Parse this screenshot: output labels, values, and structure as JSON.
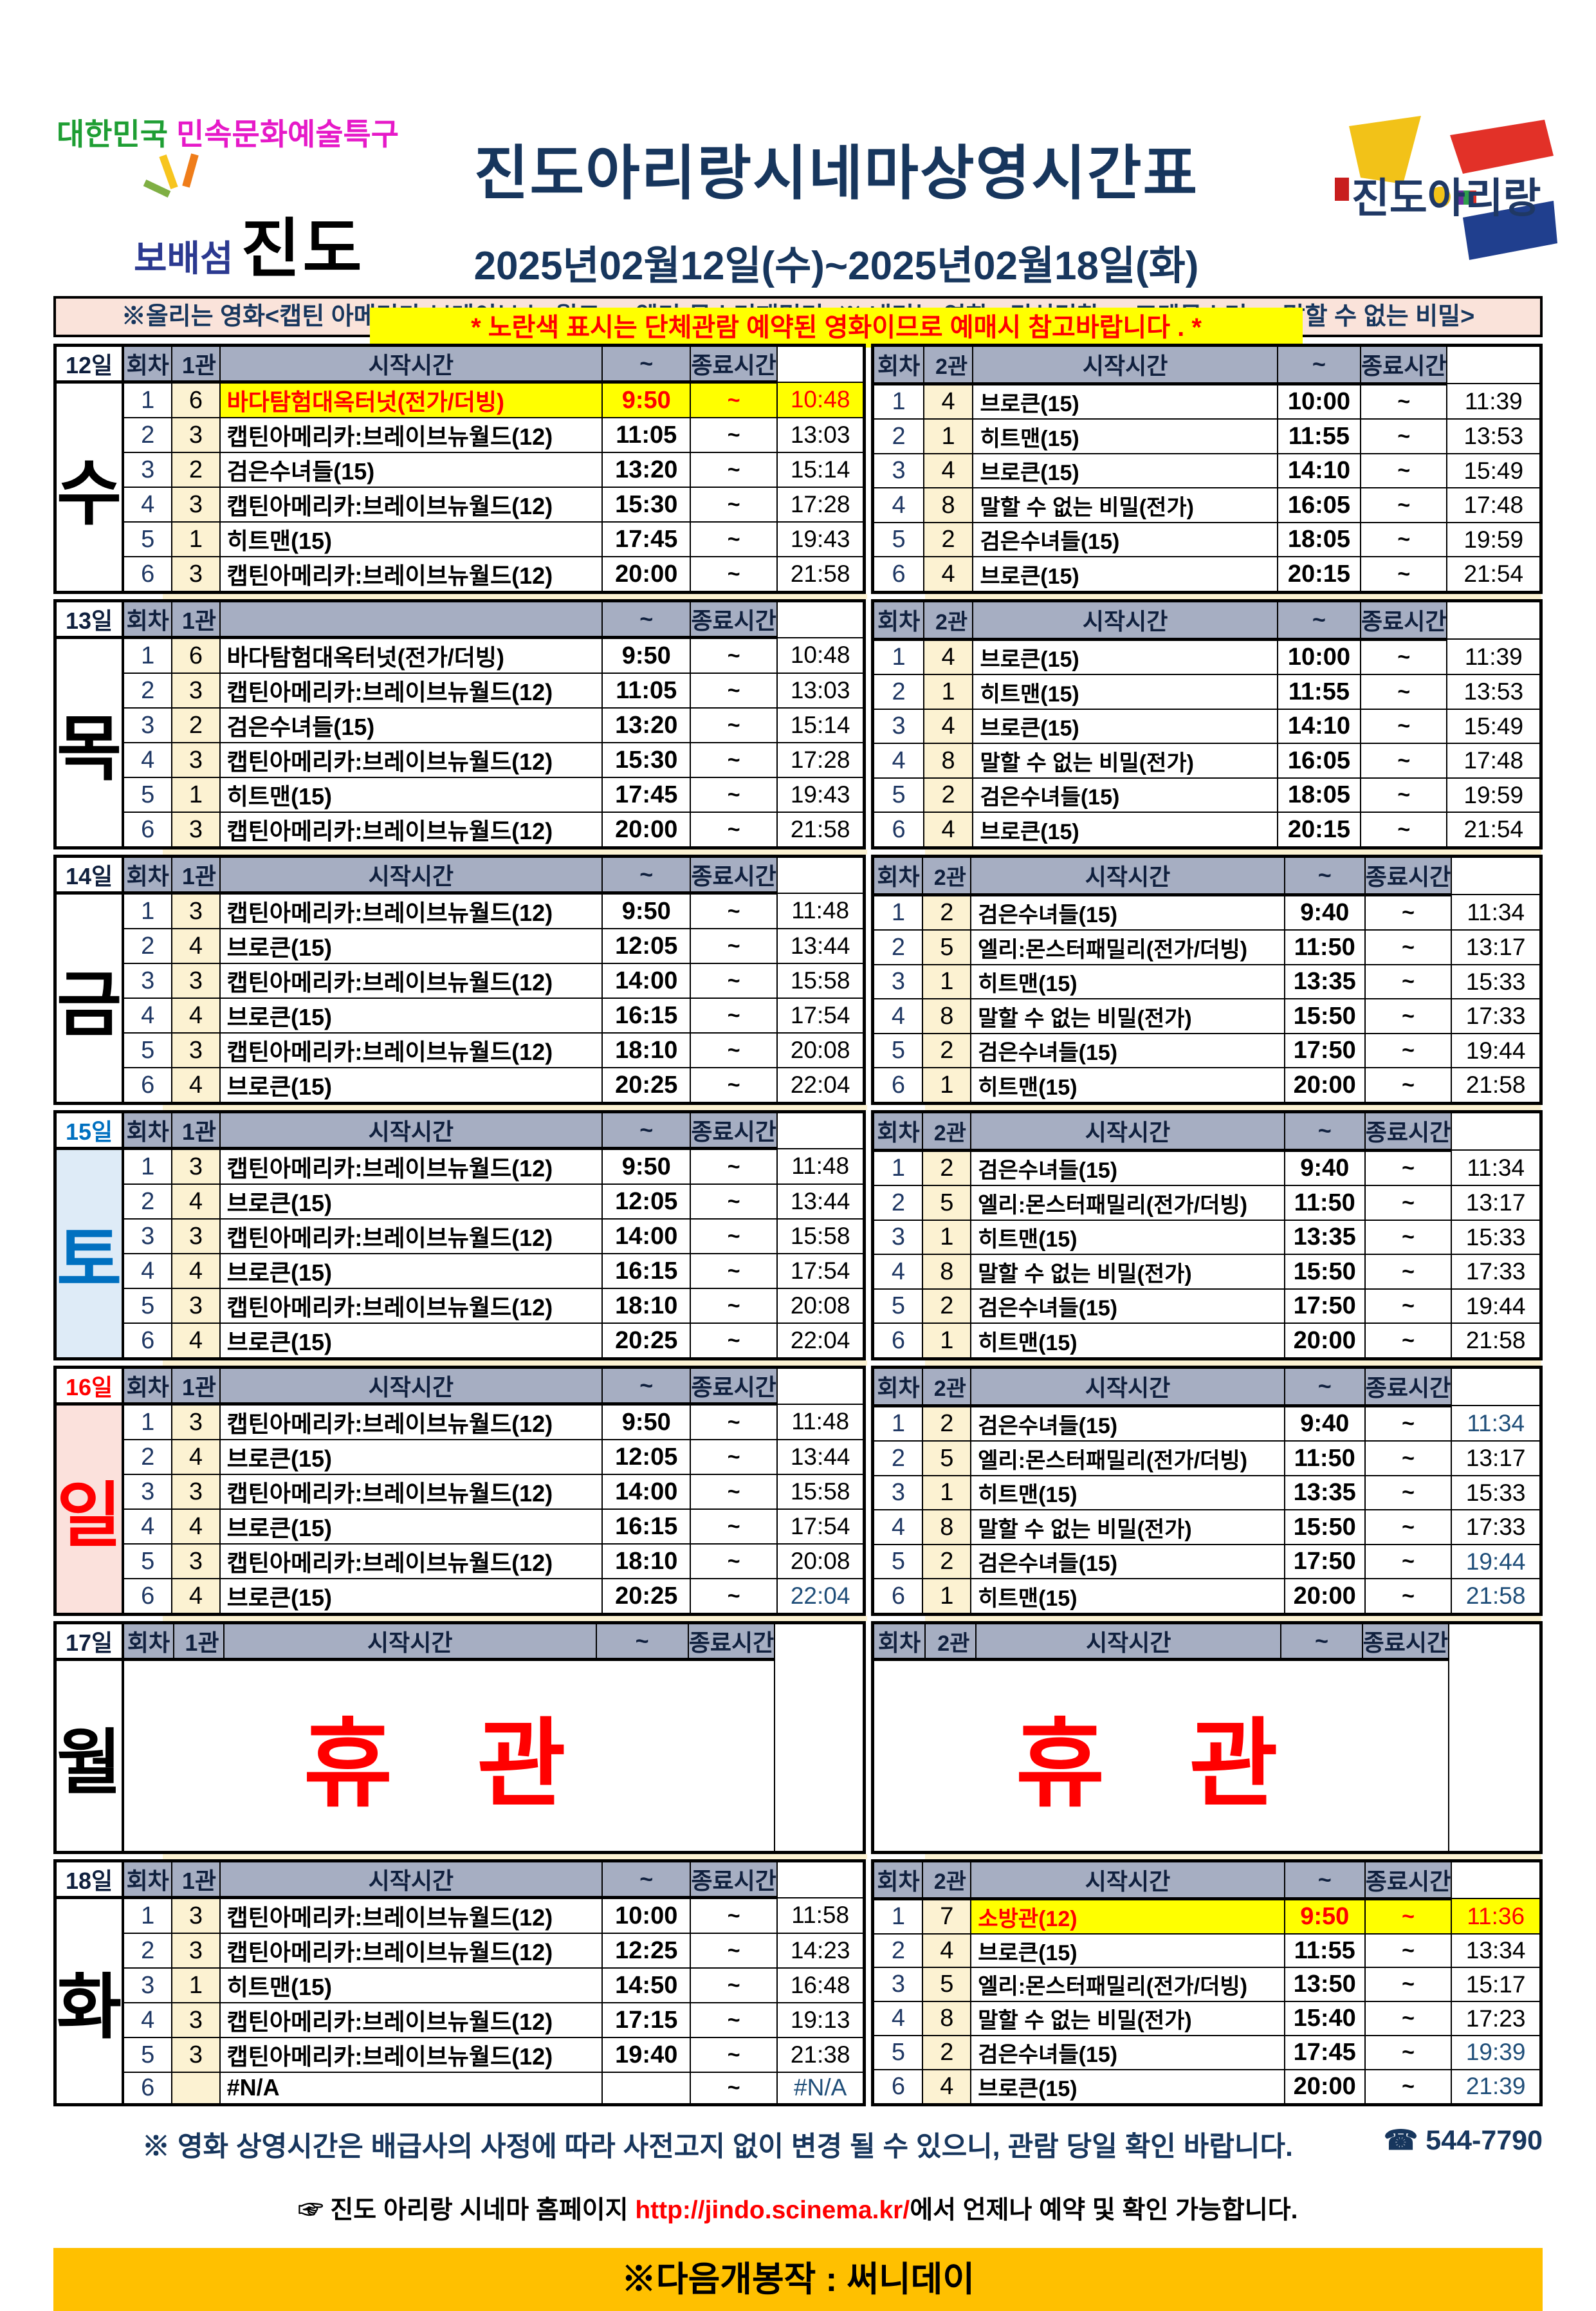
{
  "colors": {
    "header_fill": "#A6AEC2",
    "count_fill": "#FCF2D2",
    "highlight": "#FFFF00",
    "highlight_text": "#FF0000",
    "navy": "#17365D",
    "blue_time": "#1F4E79",
    "sat_blue": "#0070C0",
    "sat_fill": "#DEEBF7",
    "sun_red": "#FF0000",
    "sun_fill": "#FBE1DC",
    "notice_fill": "#FAE3DA",
    "banner_fill": "#FFC000",
    "grid_purple": "#7030A0"
  },
  "header": {
    "logo_left_line1_a": "대한민국",
    "logo_left_line1_b": "민속문화예술특구",
    "logo_left_line2_a": "보배섬",
    "logo_left_line2_b": "진도",
    "logo_right_text": "진도아리랑",
    "title": "진도아리랑시네마상영시간표",
    "date_range": "2025년02월12일(수)~2025년02월18일(화)",
    "yellow_notice": "* 노란색 표시는 단체관람 예약된 영화이므로 예매시 참고바랍니다 . *",
    "movies_notice": "※올리는 영화<캡틴 아메리카:브레이브 뉴 월드>,<엘리:몬스터패밀리>※ 내리는 영화,<귀신경찰>,<포켓몬스터>,<말할 수 없는 비밀>"
  },
  "table_headers": {
    "round": "회차",
    "screen1": "1관",
    "screen2": "2관",
    "start": "시작시간",
    "tilde": "~",
    "end": "종료시간"
  },
  "closed_label": "휴 관",
  "days": [
    {
      "date": "12일",
      "day": "수",
      "theme": "normal",
      "closed": false,
      "screen1": {
        "start_header": "시작시간",
        "rows": [
          {
            "n": "1",
            "c": "6",
            "t": "바다탐험대옥터넛(전가/더빙)",
            "s": "9:50",
            "e": "10:48",
            "hl": true
          },
          {
            "n": "2",
            "c": "3",
            "t": "캡틴아메리카:브레이브뉴월드(12)",
            "s": "11:05",
            "e": "13:03"
          },
          {
            "n": "3",
            "c": "2",
            "t": "검은수녀들(15)",
            "s": "13:20",
            "e": "15:14"
          },
          {
            "n": "4",
            "c": "3",
            "t": "캡틴아메리카:브레이브뉴월드(12)",
            "s": "15:30",
            "e": "17:28"
          },
          {
            "n": "5",
            "c": "1",
            "t": "히트맨(15)",
            "s": "17:45",
            "e": "19:43"
          },
          {
            "n": "6",
            "c": "3",
            "t": "캡틴아메리카:브레이브뉴월드(12)",
            "s": "20:00",
            "e": "21:58"
          }
        ]
      },
      "screen2": {
        "start_header": "시작시간",
        "rows": [
          {
            "n": "1",
            "c": "4",
            "t": "브로큰(15)",
            "s": "10:00",
            "e": "11:39"
          },
          {
            "n": "2",
            "c": "1",
            "t": "히트맨(15)",
            "s": "11:55",
            "e": "13:53"
          },
          {
            "n": "3",
            "c": "4",
            "t": "브로큰(15)",
            "s": "14:10",
            "e": "15:49"
          },
          {
            "n": "4",
            "c": "8",
            "t": "말할 수 없는 비밀(전가)",
            "s": "16:05",
            "e": "17:48"
          },
          {
            "n": "5",
            "c": "2",
            "t": "검은수녀들(15)",
            "s": "18:05",
            "e": "19:59"
          },
          {
            "n": "6",
            "c": "4",
            "t": "브로큰(15)",
            "s": "20:15",
            "e": "21:54"
          }
        ]
      }
    },
    {
      "date": "13일",
      "day": "목",
      "theme": "normal",
      "closed": false,
      "screen1": {
        "start_header": "",
        "rows": [
          {
            "n": "1",
            "c": "6",
            "t": "바다탐험대옥터넛(전가/더빙)",
            "s": "9:50",
            "e": "10:48"
          },
          {
            "n": "2",
            "c": "3",
            "t": "캡틴아메리카:브레이브뉴월드(12)",
            "s": "11:05",
            "e": "13:03"
          },
          {
            "n": "3",
            "c": "2",
            "t": "검은수녀들(15)",
            "s": "13:20",
            "e": "15:14"
          },
          {
            "n": "4",
            "c": "3",
            "t": "캡틴아메리카:브레이브뉴월드(12)",
            "s": "15:30",
            "e": "17:28"
          },
          {
            "n": "5",
            "c": "1",
            "t": "히트맨(15)",
            "s": "17:45",
            "e": "19:43"
          },
          {
            "n": "6",
            "c": "3",
            "t": "캡틴아메리카:브레이브뉴월드(12)",
            "s": "20:00",
            "e": "21:58"
          }
        ]
      },
      "screen2": {
        "start_header": "시작시간",
        "rows": [
          {
            "n": "1",
            "c": "4",
            "t": "브로큰(15)",
            "s": "10:00",
            "e": "11:39"
          },
          {
            "n": "2",
            "c": "1",
            "t": "히트맨(15)",
            "s": "11:55",
            "e": "13:53"
          },
          {
            "n": "3",
            "c": "4",
            "t": "브로큰(15)",
            "s": "14:10",
            "e": "15:49"
          },
          {
            "n": "4",
            "c": "8",
            "t": "말할 수 없는 비밀(전가)",
            "s": "16:05",
            "e": "17:48"
          },
          {
            "n": "5",
            "c": "2",
            "t": "검은수녀들(15)",
            "s": "18:05",
            "e": "19:59"
          },
          {
            "n": "6",
            "c": "4",
            "t": "브로큰(15)",
            "s": "20:15",
            "e": "21:54"
          }
        ]
      }
    },
    {
      "date": "14일",
      "day": "금",
      "theme": "normal",
      "closed": false,
      "screen1": {
        "start_header": "시작시간",
        "rows": [
          {
            "n": "1",
            "c": "3",
            "t": "캡틴아메리카:브레이브뉴월드(12)",
            "s": "9:50",
            "e": "11:48"
          },
          {
            "n": "2",
            "c": "4",
            "t": "브로큰(15)",
            "s": "12:05",
            "e": "13:44"
          },
          {
            "n": "3",
            "c": "3",
            "t": "캡틴아메리카:브레이브뉴월드(12)",
            "s": "14:00",
            "e": "15:58"
          },
          {
            "n": "4",
            "c": "4",
            "t": "브로큰(15)",
            "s": "16:15",
            "e": "17:54"
          },
          {
            "n": "5",
            "c": "3",
            "t": "캡틴아메리카:브레이브뉴월드(12)",
            "s": "18:10",
            "e": "20:08"
          },
          {
            "n": "6",
            "c": "4",
            "t": "브로큰(15)",
            "s": "20:25",
            "e": "22:04"
          }
        ]
      },
      "screen2": {
        "start_header": "시작시간",
        "rows": [
          {
            "n": "1",
            "c": "2",
            "t": "검은수녀들(15)",
            "s": "9:40",
            "e": "11:34"
          },
          {
            "n": "2",
            "c": "5",
            "t": "엘리:몬스터패밀리(전가/더빙)",
            "s": "11:50",
            "e": "13:17"
          },
          {
            "n": "3",
            "c": "1",
            "t": "히트맨(15)",
            "s": "13:35",
            "e": "15:33"
          },
          {
            "n": "4",
            "c": "8",
            "t": "말할 수 없는 비밀(전가)",
            "s": "15:50",
            "e": "17:33"
          },
          {
            "n": "5",
            "c": "2",
            "t": "검은수녀들(15)",
            "s": "17:50",
            "e": "19:44"
          },
          {
            "n": "6",
            "c": "1",
            "t": "히트맨(15)",
            "s": "20:00",
            "e": "21:58"
          }
        ]
      }
    },
    {
      "date": "15일",
      "day": "토",
      "theme": "blue",
      "closed": false,
      "screen1": {
        "start_header": "시작시간",
        "rows": [
          {
            "n": "1",
            "c": "3",
            "t": "캡틴아메리카:브레이브뉴월드(12)",
            "s": "9:50",
            "e": "11:48"
          },
          {
            "n": "2",
            "c": "4",
            "t": "브로큰(15)",
            "s": "12:05",
            "e": "13:44"
          },
          {
            "n": "3",
            "c": "3",
            "t": "캡틴아메리카:브레이브뉴월드(12)",
            "s": "14:00",
            "e": "15:58"
          },
          {
            "n": "4",
            "c": "4",
            "t": "브로큰(15)",
            "s": "16:15",
            "e": "17:54"
          },
          {
            "n": "5",
            "c": "3",
            "t": "캡틴아메리카:브레이브뉴월드(12)",
            "s": "18:10",
            "e": "20:08"
          },
          {
            "n": "6",
            "c": "4",
            "t": "브로큰(15)",
            "s": "20:25",
            "e": "22:04"
          }
        ]
      },
      "screen2": {
        "start_header": "시작시간",
        "rows": [
          {
            "n": "1",
            "c": "2",
            "t": "검은수녀들(15)",
            "s": "9:40",
            "e": "11:34"
          },
          {
            "n": "2",
            "c": "5",
            "t": "엘리:몬스터패밀리(전가/더빙)",
            "s": "11:50",
            "e": "13:17"
          },
          {
            "n": "3",
            "c": "1",
            "t": "히트맨(15)",
            "s": "13:35",
            "e": "15:33"
          },
          {
            "n": "4",
            "c": "8",
            "t": "말할 수 없는 비밀(전가)",
            "s": "15:50",
            "e": "17:33"
          },
          {
            "n": "5",
            "c": "2",
            "t": "검은수녀들(15)",
            "s": "17:50",
            "e": "19:44"
          },
          {
            "n": "6",
            "c": "1",
            "t": "히트맨(15)",
            "s": "20:00",
            "e": "21:58"
          }
        ]
      }
    },
    {
      "date": "16일",
      "day": "일",
      "theme": "red",
      "closed": false,
      "screen1": {
        "start_header": "시작시간",
        "rows": [
          {
            "n": "1",
            "c": "3",
            "t": "캡틴아메리카:브레이브뉴월드(12)",
            "s": "9:50",
            "e": "11:48"
          },
          {
            "n": "2",
            "c": "4",
            "t": "브로큰(15)",
            "s": "12:05",
            "e": "13:44"
          },
          {
            "n": "3",
            "c": "3",
            "t": "캡틴아메리카:브레이브뉴월드(12)",
            "s": "14:00",
            "e": "15:58"
          },
          {
            "n": "4",
            "c": "4",
            "t": "브로큰(15)",
            "s": "16:15",
            "e": "17:54"
          },
          {
            "n": "5",
            "c": "3",
            "t": "캡틴아메리카:브레이브뉴월드(12)",
            "s": "18:10",
            "e": "20:08"
          },
          {
            "n": "6",
            "c": "4",
            "t": "브로큰(15)",
            "s": "20:25",
            "e": "22:04",
            "eb": true
          }
        ]
      },
      "screen2": {
        "start_header": "시작시간",
        "rows": [
          {
            "n": "1",
            "c": "2",
            "t": "검은수녀들(15)",
            "s": "9:40",
            "e": "11:34",
            "eb": true
          },
          {
            "n": "2",
            "c": "5",
            "t": "엘리:몬스터패밀리(전가/더빙)",
            "s": "11:50",
            "e": "13:17"
          },
          {
            "n": "3",
            "c": "1",
            "t": "히트맨(15)",
            "s": "13:35",
            "e": "15:33"
          },
          {
            "n": "4",
            "c": "8",
            "t": "말할 수 없는 비밀(전가)",
            "s": "15:50",
            "e": "17:33"
          },
          {
            "n": "5",
            "c": "2",
            "t": "검은수녀들(15)",
            "s": "17:50",
            "e": "19:44",
            "eb": true
          },
          {
            "n": "6",
            "c": "1",
            "t": "히트맨(15)",
            "s": "20:00",
            "e": "21:58",
            "eb": true
          }
        ]
      }
    },
    {
      "date": "17일",
      "day": "월",
      "theme": "normal",
      "closed": true,
      "screen1": {
        "start_header": "시작시간",
        "rows": []
      },
      "screen2": {
        "start_header": "시작시간",
        "rows": []
      }
    },
    {
      "date": "18일",
      "day": "화",
      "theme": "normal",
      "closed": false,
      "screen1": {
        "start_header": "시작시간",
        "rows": [
          {
            "n": "1",
            "c": "3",
            "t": "캡틴아메리카:브레이브뉴월드(12)",
            "s": "10:00",
            "e": "11:58"
          },
          {
            "n": "2",
            "c": "3",
            "t": "캡틴아메리카:브레이브뉴월드(12)",
            "s": "12:25",
            "e": "14:23"
          },
          {
            "n": "3",
            "c": "1",
            "t": "히트맨(15)",
            "s": "14:50",
            "e": "16:48"
          },
          {
            "n": "4",
            "c": "3",
            "t": "캡틴아메리카:브레이브뉴월드(12)",
            "s": "17:15",
            "e": "19:13"
          },
          {
            "n": "5",
            "c": "3",
            "t": "캡틴아메리카:브레이브뉴월드(12)",
            "s": "19:40",
            "e": "21:38"
          },
          {
            "n": "6",
            "c": "",
            "t": "#N/A",
            "s": "",
            "e": "#N/A",
            "eb": true
          }
        ]
      },
      "screen2": {
        "start_header": "시작시간",
        "rows": [
          {
            "n": "1",
            "c": "7",
            "t": "소방관(12)",
            "s": "9:50",
            "e": "11:36",
            "hl": true
          },
          {
            "n": "2",
            "c": "4",
            "t": "브로큰(15)",
            "s": "11:55",
            "e": "13:34"
          },
          {
            "n": "3",
            "c": "5",
            "t": "엘리:몬스터패밀리(전가/더빙)",
            "s": "13:50",
            "e": "15:17"
          },
          {
            "n": "4",
            "c": "8",
            "t": "말할 수 없는 비밀(전가)",
            "s": "15:40",
            "e": "17:23"
          },
          {
            "n": "5",
            "c": "2",
            "t": "검은수녀들(15)",
            "s": "17:45",
            "e": "19:39",
            "eb": true
          },
          {
            "n": "6",
            "c": "4",
            "t": "브로큰(15)",
            "s": "20:00",
            "e": "21:39",
            "eb": true
          }
        ]
      }
    }
  ],
  "footer": {
    "notice": "※ 영화 상영시간은 배급사의 사정에 따라 사전고지 없이 변경 될 수 있으니, 관람 당일 확인 바랍니다.",
    "phone": "☎ 544-7790",
    "homepage_prefix": "☞ 진도 아리랑 시네마 홈페이지 ",
    "homepage_url": "http://jindo.scinema.kr/",
    "homepage_suffix": "에서 언제나 예약 및 확인 가능합니다.",
    "next_release": "※다음개봉작 : 써니데이"
  }
}
